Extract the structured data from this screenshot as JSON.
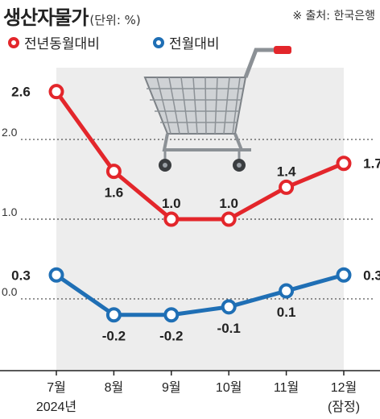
{
  "header": {
    "title": "생산자물가",
    "unit": "(단위: %)",
    "source": "※ 출처: 한국은행"
  },
  "legend": [
    {
      "label": "전년동월대비",
      "color": "#e3262b"
    },
    {
      "label": "전월대비",
      "color": "#1f6fb5"
    }
  ],
  "chart_data": {
    "type": "line",
    "title": "생산자물가",
    "categories": [
      "7월",
      "8월",
      "9월",
      "10월",
      "11월",
      "12월"
    ],
    "category_sublabels": [
      "2024년",
      "",
      "",
      "",
      "",
      "(잠정)"
    ],
    "series": [
      {
        "name": "전년동월대비",
        "values": [
          2.6,
          1.6,
          1.0,
          1.0,
          1.4,
          1.7
        ],
        "labels": [
          "2.6",
          "1.6",
          "1.0",
          "1.0",
          "1.4",
          "1.7"
        ],
        "color": "#e3262b"
      },
      {
        "name": "전월대비",
        "values": [
          0.3,
          -0.2,
          -0.2,
          -0.1,
          0.1,
          0.3
        ],
        "labels": [
          "0.3",
          "-0.2",
          "-0.2",
          "-0.1",
          "0.1",
          "0.3"
        ],
        "color": "#1f6fb5"
      }
    ],
    "yticks": [
      0.0,
      1.0,
      2.0
    ],
    "ytick_labels": [
      "0.0",
      "1.0",
      "2.0"
    ],
    "ylim": [
      -0.9,
      2.9
    ],
    "grid": true,
    "shaded_band": true,
    "illustration": "shopping-cart"
  }
}
